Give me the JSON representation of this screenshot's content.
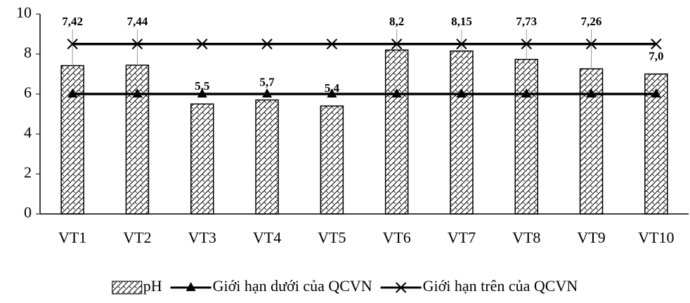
{
  "chart_data": {
    "type": "bar",
    "categories": [
      "VT1",
      "VT2",
      "VT3",
      "VT4",
      "VT5",
      "VT6",
      "VT7",
      "VT8",
      "VT9",
      "VT10"
    ],
    "series": [
      {
        "name": "pH",
        "type": "bar",
        "color": "#000000",
        "values": [
          7.42,
          7.44,
          5.5,
          5.7,
          5.4,
          8.2,
          8.15,
          7.73,
          7.26,
          7.0
        ],
        "value_labels": [
          "7,42",
          "7,44",
          "5,5",
          "5,7",
          "5,4",
          "8,2",
          "8,15",
          "7,73",
          "7,26",
          "7,0"
        ]
      },
      {
        "name": "Giới hạn dưới của QCVN",
        "type": "line",
        "marker": "triangle",
        "color": "#000000",
        "values": [
          6,
          6,
          6,
          6,
          6,
          6,
          6,
          6,
          6,
          6
        ]
      },
      {
        "name": "Giới hạn trên của QCVN",
        "type": "line",
        "marker": "x",
        "color": "#000000",
        "values": [
          8.5,
          8.5,
          8.5,
          8.5,
          8.5,
          8.5,
          8.5,
          8.5,
          8.5,
          8.5
        ]
      }
    ],
    "ylim": [
      0,
      10
    ],
    "yticks": [
      0,
      2,
      4,
      6,
      8,
      10
    ],
    "legend": "bottom"
  }
}
